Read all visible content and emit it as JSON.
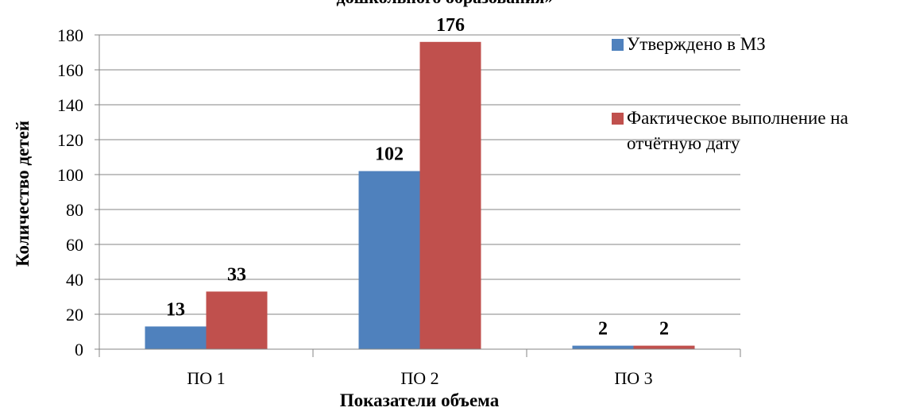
{
  "chart_data": {
    "type": "bar",
    "title": "дошкольного образования»",
    "categories": [
      "ПО 1",
      "ПО 2",
      "ПО 3"
    ],
    "series": [
      {
        "name": "Утверждено в МЗ",
        "color": "#4f81bd",
        "values": [
          13,
          102,
          2
        ]
      },
      {
        "name": "Фактическое выполнение на отчётную дату",
        "color": "#c0504d",
        "values": [
          33,
          176,
          2
        ]
      }
    ],
    "ylim": [
      0,
      180
    ],
    "yticks": [
      0,
      20,
      40,
      60,
      80,
      100,
      120,
      140,
      160,
      180
    ],
    "y_label": "Количество детей",
    "x_label": "Показатели объема",
    "grid": true,
    "legend": "right"
  }
}
